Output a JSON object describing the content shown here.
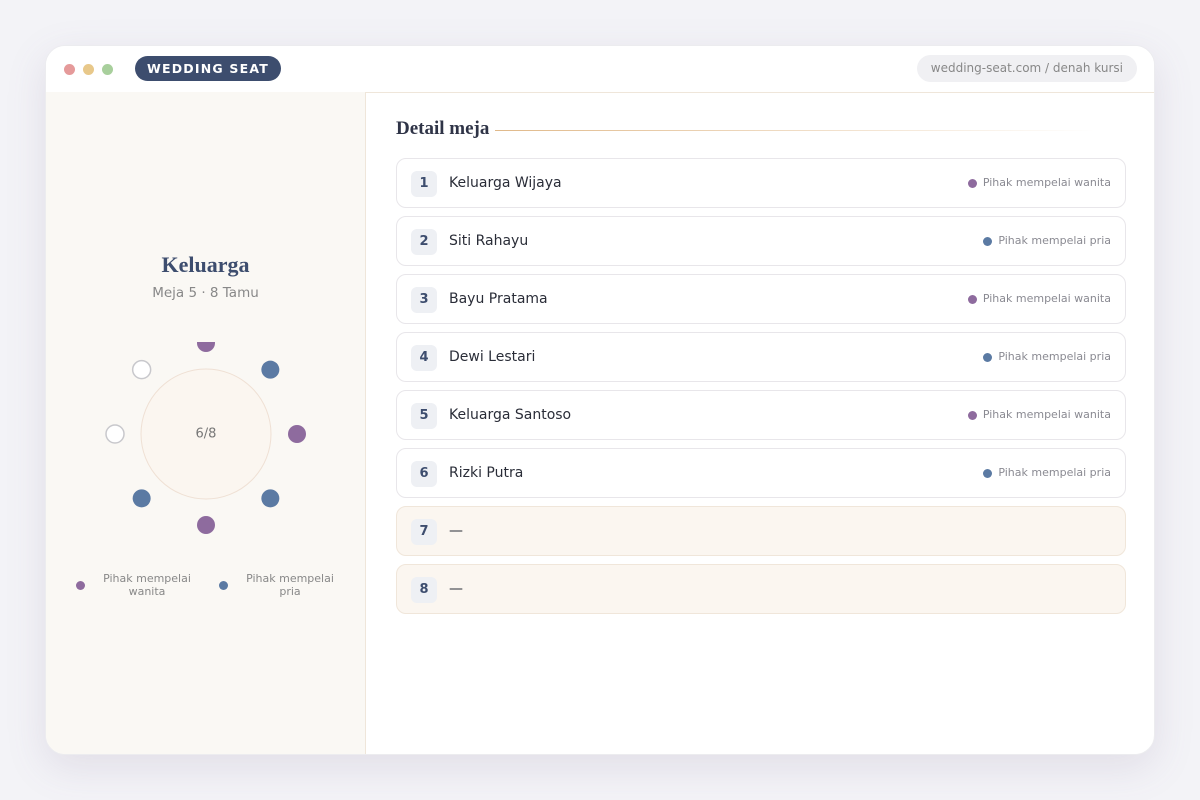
{
  "header": {
    "brand": "WEDDING SEAT",
    "url": "wedding-seat.com / denah kursi"
  },
  "table_panel": {
    "title": "Keluarga",
    "subtitle": "Meja 5 · 8 Tamu",
    "occupancy": "6/8",
    "legend": [
      {
        "label": "Pihak mempelai wanita",
        "color": "#8e6b9e"
      },
      {
        "label": "Pihak mempelai pria",
        "color": "#5b7aa3"
      }
    ]
  },
  "detail": {
    "title": "Detail meja",
    "rows": [
      {
        "number": 1,
        "name": "Keluarga Wijaya",
        "side": "Pihak mempelai wanita"
      },
      {
        "number": 2,
        "name": "Siti Rahayu",
        "side": "Pihak mempelai pria"
      },
      {
        "number": 3,
        "name": "Bayu Pratama",
        "side": "Pihak mempelai wanita"
      },
      {
        "number": 4,
        "name": "Dewi Lestari",
        "side": "Pihak mempelai pria"
      },
      {
        "number": 5,
        "name": "Keluarga Santoso",
        "side": "Pihak mempelai wanita"
      },
      {
        "number": 6,
        "name": "Rizki Putra",
        "side": "Pihak mempelai pria"
      },
      {
        "number": 7,
        "name": "—"
      },
      {
        "number": 8,
        "name": "—"
      }
    ]
  }
}
